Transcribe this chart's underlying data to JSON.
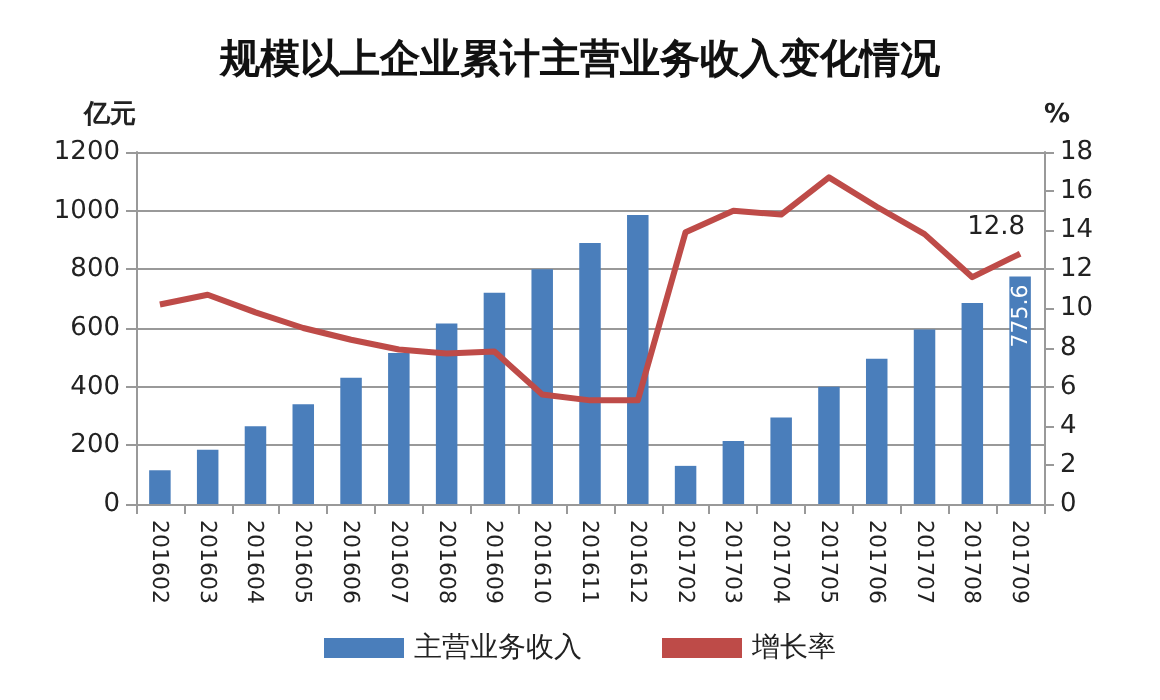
{
  "chart_data": {
    "type": "bar",
    "title": "规模以上企业累计主营业务收入变化情况",
    "ylabel": "亿元",
    "y2label": "%",
    "categories": [
      "201602",
      "201603",
      "201604",
      "201605",
      "201606",
      "201607",
      "201608",
      "201609",
      "201610",
      "201611",
      "201612",
      "201702",
      "201703",
      "201704",
      "201705",
      "201706",
      "201707",
      "201708",
      "201709"
    ],
    "series": [
      {
        "name": "主营业务收入",
        "color": "#4a7ebb",
        "values": [
          115,
          185,
          265,
          340,
          430,
          515,
          615,
          720,
          800,
          890,
          985,
          130,
          215,
          295,
          400,
          495,
          595,
          685,
          775.6
        ],
        "value_labels": [
          null,
          null,
          null,
          null,
          null,
          null,
          null,
          null,
          null,
          null,
          null,
          null,
          null,
          null,
          null,
          null,
          null,
          null,
          "775.6"
        ]
      },
      {
        "name": "增长率",
        "type": "line",
        "axis": "y2",
        "color": "#be4b48",
        "values": [
          10.2,
          10.7,
          9.8,
          9.0,
          8.4,
          7.9,
          7.7,
          7.8,
          5.6,
          5.3,
          5.3,
          13.9,
          15.0,
          14.8,
          16.7,
          15.2,
          13.8,
          11.6,
          12.8
        ],
        "value_labels": [
          null,
          null,
          null,
          null,
          null,
          null,
          null,
          null,
          null,
          null,
          null,
          null,
          null,
          null,
          null,
          null,
          null,
          null,
          "12.8"
        ]
      }
    ],
    "ylim": [
      0,
      1200
    ],
    "yticks": [
      0,
      200,
      400,
      600,
      800,
      1000,
      1200
    ],
    "y2lim": [
      0,
      18
    ],
    "y2ticks": [
      0,
      2,
      4,
      6,
      8,
      10,
      12,
      14,
      16,
      18
    ],
    "grid": "y",
    "legend": "bottom",
    "marker": "none",
    "line_style": "solid"
  }
}
